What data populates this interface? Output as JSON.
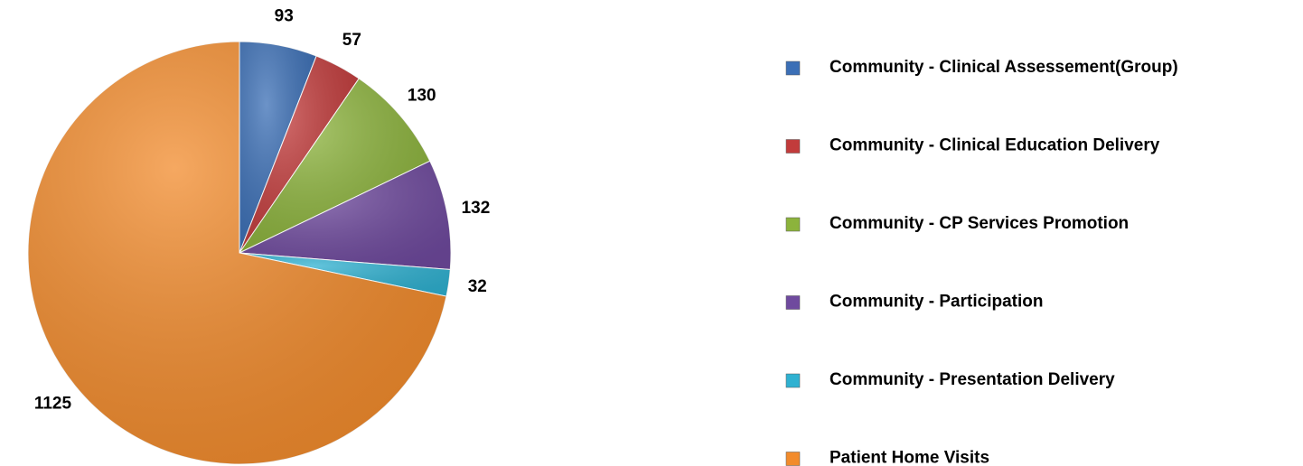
{
  "chart_data": {
    "type": "pie",
    "categories": [
      "Community - Clinical Assessement(Group)",
      "Community - Clinical Education Delivery",
      "Community - CP Services Promotion",
      "Community - Participation",
      "Community - Presentation Delivery",
      "Patient Home Visits"
    ],
    "values": [
      93,
      57,
      130,
      132,
      32,
      1125
    ],
    "colors": [
      "#3b6fb6",
      "#c23b3b",
      "#8cb33c",
      "#6f4a9e",
      "#2fb1d1",
      "#f28b2c"
    ],
    "legend": "right"
  }
}
